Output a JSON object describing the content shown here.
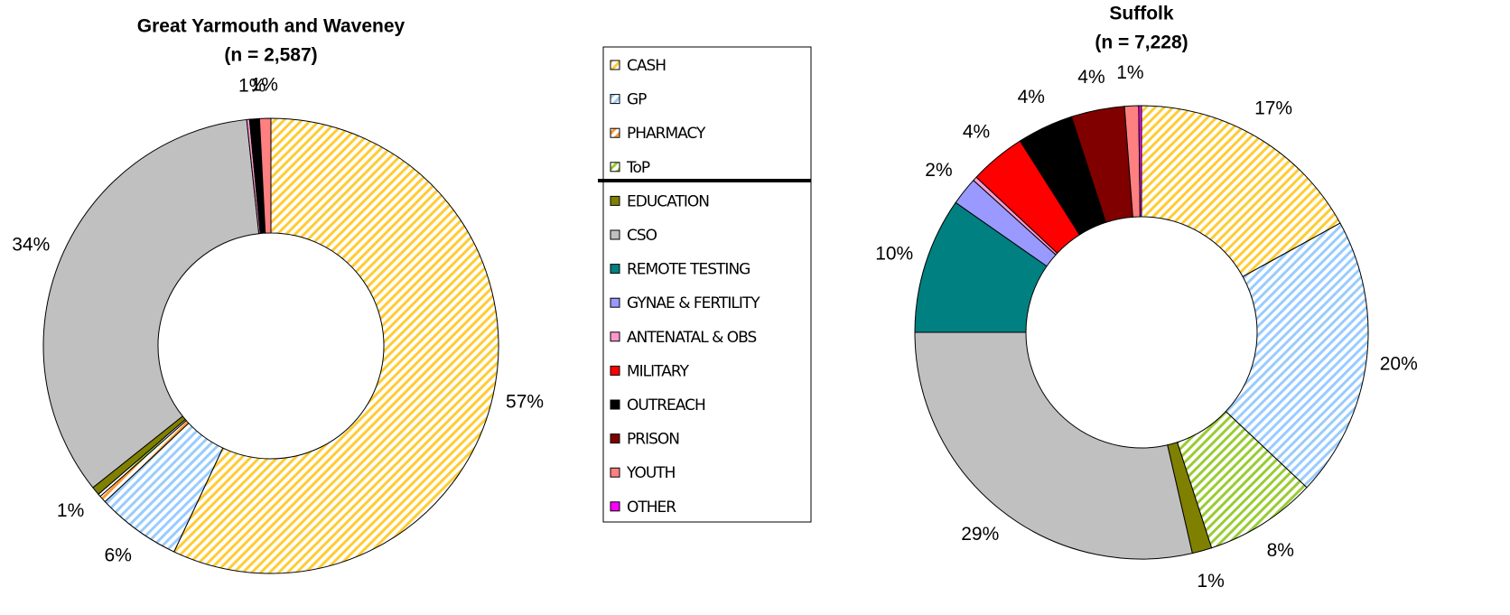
{
  "chart_data": [
    {
      "type": "pie",
      "title": "Great Yarmouth and Waveney",
      "subtitle": "(n = 2,587)",
      "categories": [
        "CASH",
        "GP",
        "PHARMACY",
        "ToP",
        "EDUCATION",
        "CSO",
        "REMOTE TESTING",
        "GYNAE & FERTILITY",
        "ANTENATAL & OBS",
        "MILITARY",
        "OUTREACH",
        "PRISON",
        "YOUTH",
        "OTHER"
      ],
      "values": [
        57,
        6,
        0.5,
        0.2,
        0.6,
        34,
        0,
        0,
        0.2,
        0,
        0.7,
        0,
        0.8,
        0
      ],
      "value_labels": [
        "57%",
        "6%",
        null,
        null,
        "1%",
        "34%",
        null,
        null,
        null,
        null,
        "1%",
        null,
        "1%",
        null
      ],
      "colors": [
        "#ffcc33",
        "#99ccff",
        "#ff9933",
        "#99cc33",
        "#808000",
        "#c0c0c0",
        "#008080",
        "#9999ff",
        "#ff99cc",
        "#ff0000",
        "#000000",
        "#800000",
        "#ff8080",
        "#ff00ff"
      ],
      "hatched": [
        true,
        true,
        true,
        true,
        false,
        false,
        false,
        false,
        false,
        false,
        false,
        false,
        false,
        false
      ]
    },
    {
      "type": "pie",
      "title": "Suffolk",
      "subtitle": "(n = 7,228)",
      "categories": [
        "CASH",
        "GP",
        "PHARMACY",
        "ToP",
        "EDUCATION",
        "CSO",
        "REMOTE TESTING",
        "GYNAE & FERTILITY",
        "ANTENATAL & OBS",
        "MILITARY",
        "OUTREACH",
        "PRISON",
        "YOUTH",
        "OTHER"
      ],
      "values": [
        17,
        20,
        0,
        8,
        1.4,
        28.6,
        9.7,
        2,
        0.3,
        4,
        4,
        3.8,
        1,
        0.2
      ],
      "value_labels": [
        "17%",
        "20%",
        null,
        "8%",
        "1%",
        "29%",
        "10%",
        "2%",
        null,
        "4%",
        "4%",
        "4%",
        "1%",
        null
      ],
      "colors": [
        "#ffcc33",
        "#99ccff",
        "#ff9933",
        "#99cc33",
        "#808000",
        "#c0c0c0",
        "#008080",
        "#9999ff",
        "#ff99cc",
        "#ff0000",
        "#000000",
        "#800000",
        "#ff8080",
        "#ff00ff"
      ],
      "hatched": [
        true,
        true,
        true,
        true,
        false,
        false,
        false,
        false,
        false,
        false,
        false,
        false,
        false,
        false
      ]
    }
  ]
}
